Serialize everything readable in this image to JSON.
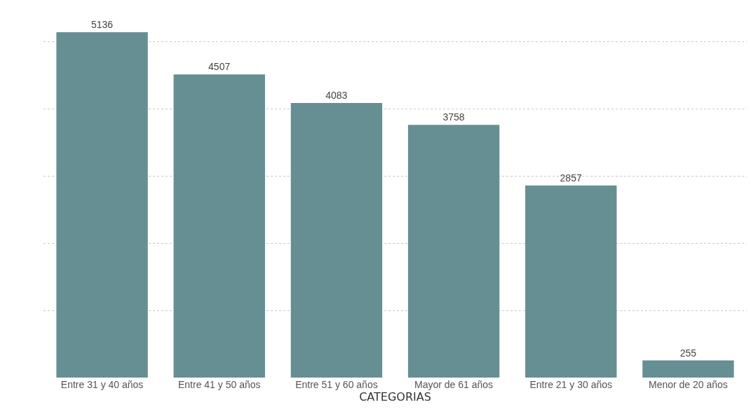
{
  "chart_data": {
    "type": "bar",
    "xlabel": "CATEGORIAS",
    "categories": [
      "Entre 31 y 40 años",
      "Entre 41 y 50 años",
      "Entre 51 y 60 años",
      "Mayor de 61 años",
      "Entre 21 y 30 años",
      "Menor de 20 años"
    ],
    "values": [
      5136,
      4507,
      4083,
      3758,
      2857,
      255
    ],
    "color": "#668f93",
    "tick_labels": "x",
    "grid": "y",
    "data_labels": true,
    "legend": false
  }
}
